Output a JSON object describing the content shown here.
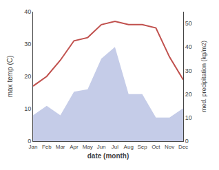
{
  "chart_data": {
    "type": "line",
    "categories": [
      "Jan",
      "Feb",
      "Mar",
      "Apr",
      "May",
      "Jun",
      "Jul",
      "Aug",
      "Sep",
      "Oct",
      "Nov",
      "Dec"
    ],
    "xlabel": "date (month)",
    "ylabel": "max temp (C)",
    "y2label": "med. precipitation (kg/m2)",
    "series": [
      {
        "type": "area",
        "axis": "y2",
        "color": "#c5cce8",
        "values": [
          11,
          15,
          11,
          21,
          22,
          35,
          40,
          20,
          20,
          10,
          10,
          14
        ]
      },
      {
        "type": "line",
        "color": "#c0504d",
        "values": [
          17,
          20,
          25,
          31,
          32,
          36,
          37,
          36,
          36,
          35,
          26,
          19
        ]
      }
    ],
    "ylim": [
      0,
      40
    ],
    "yticks": [
      0,
      10,
      20,
      30,
      40
    ],
    "y2lim": [
      0,
      55
    ],
    "y2ticks": [
      0,
      10,
      20,
      30,
      40,
      50
    ],
    "grid": false
  }
}
